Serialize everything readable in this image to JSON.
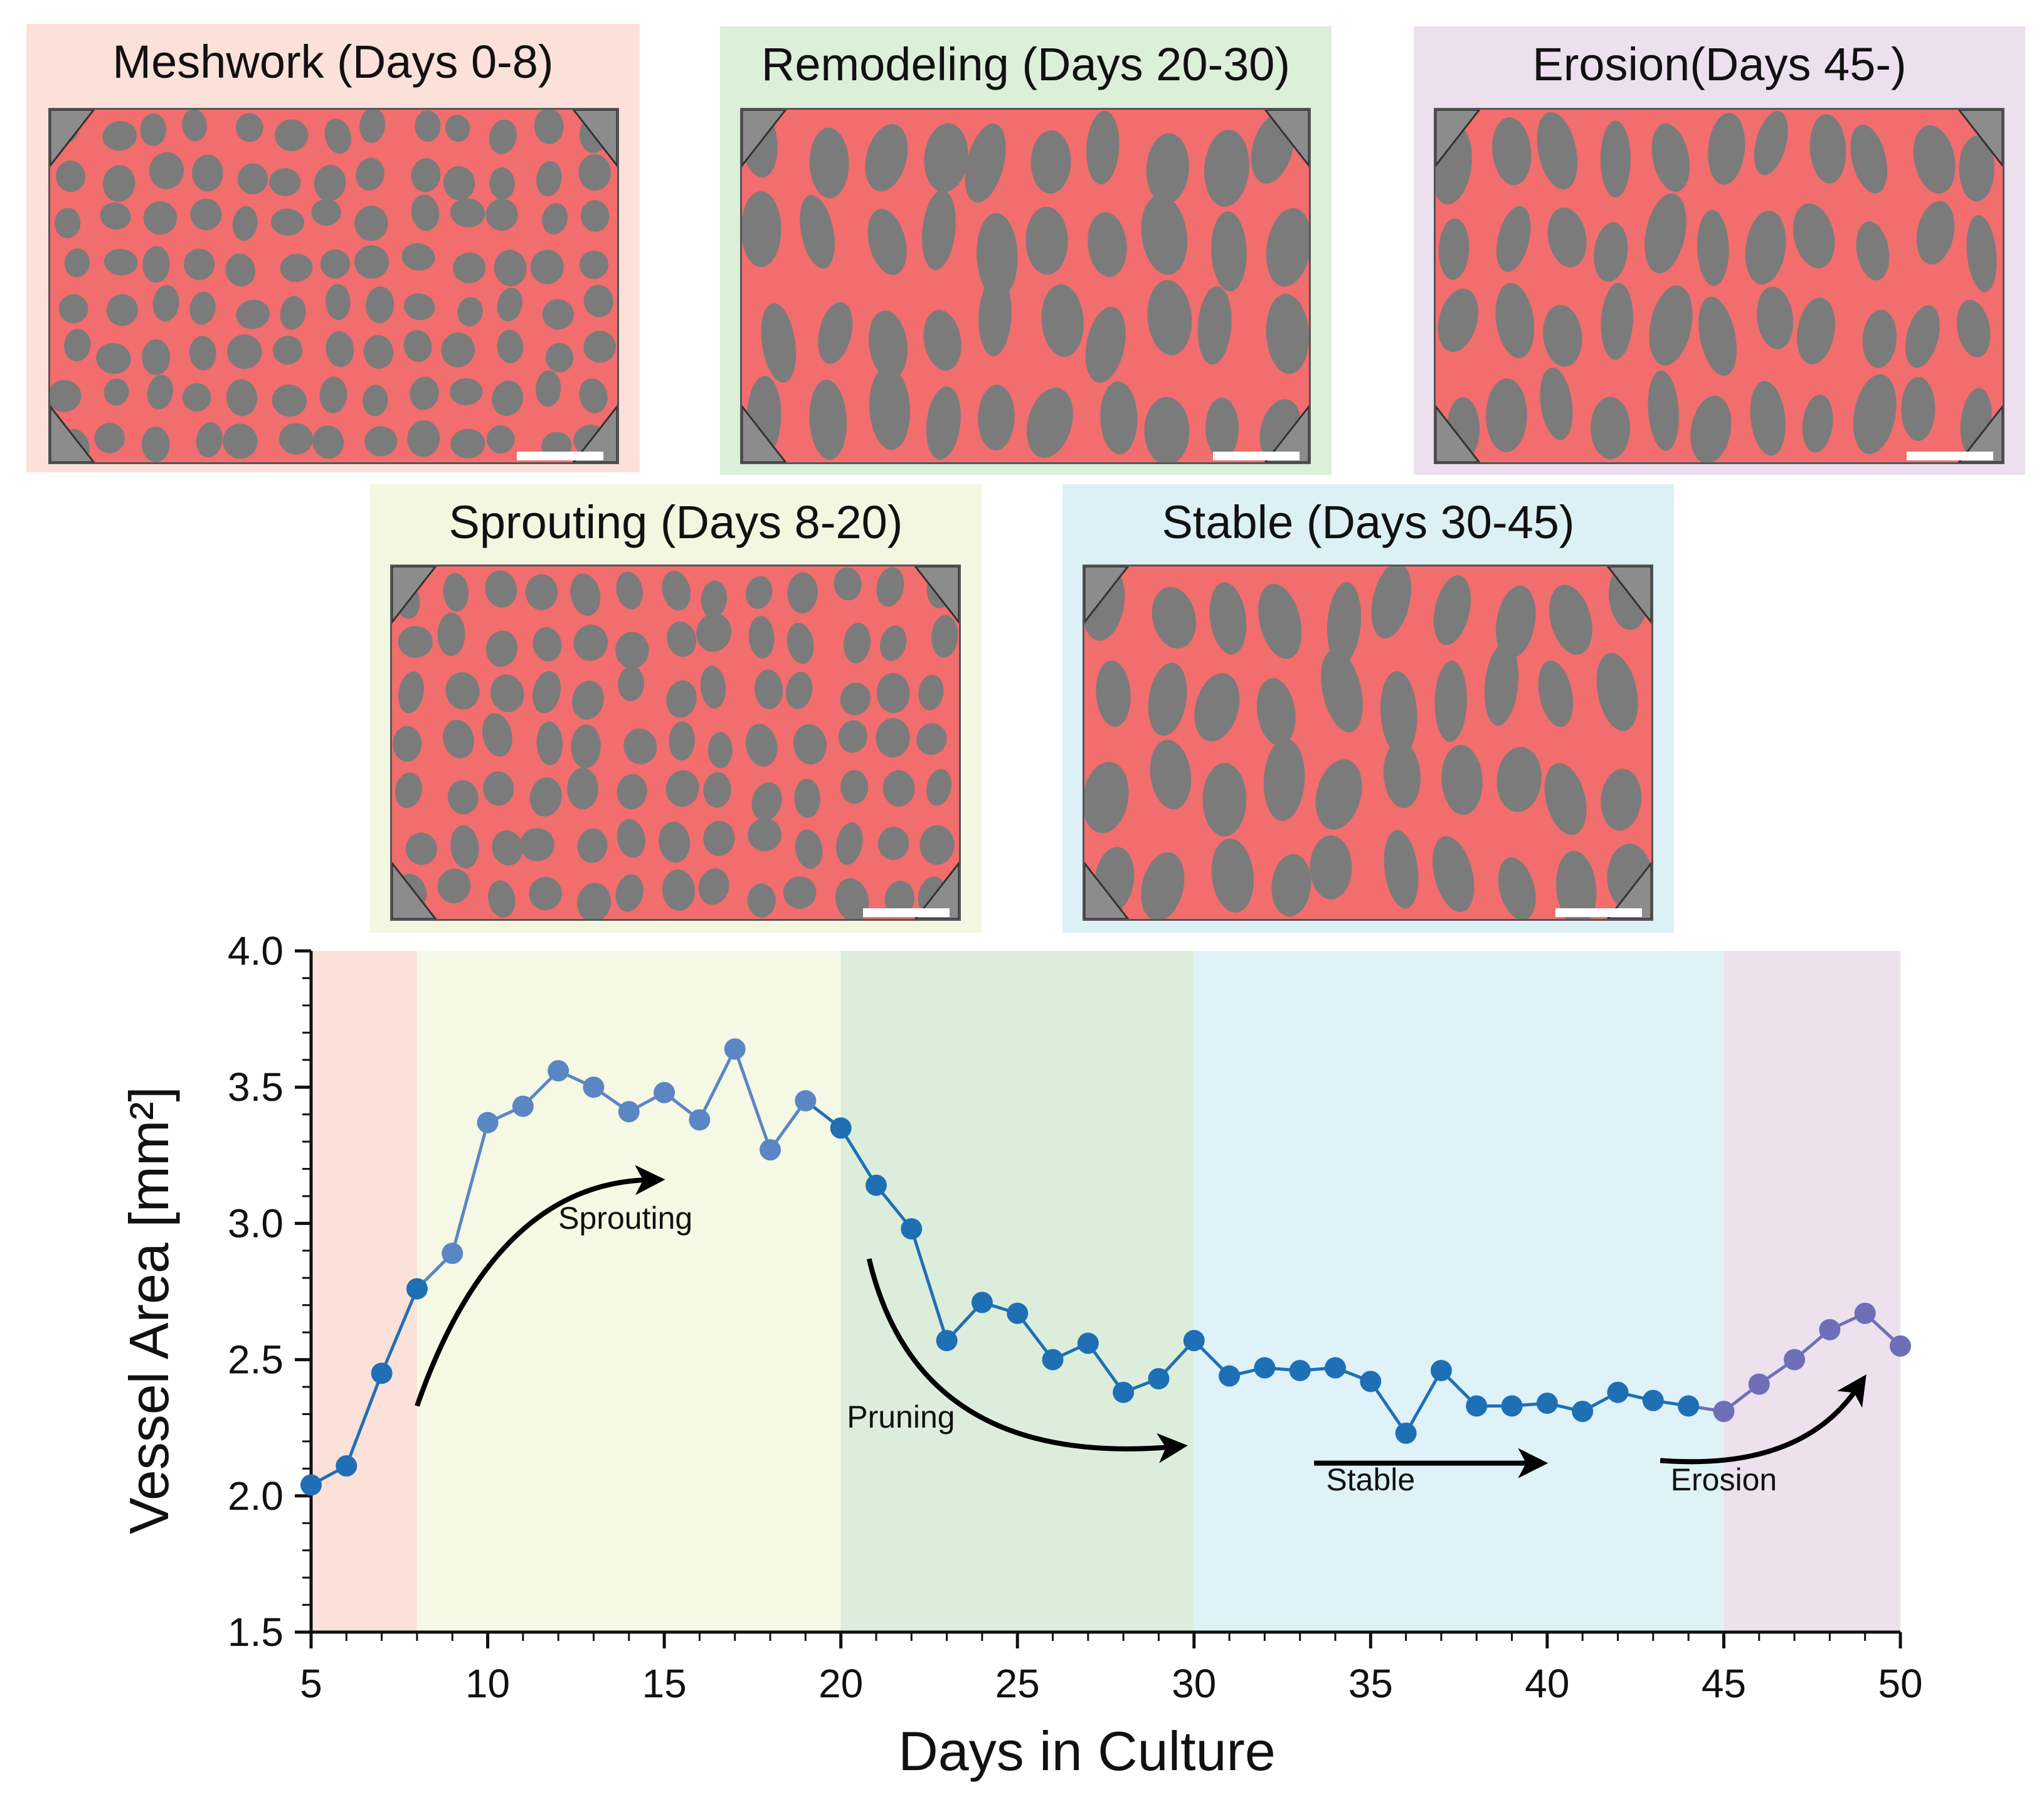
{
  "panels": [
    {
      "key": "meshwork",
      "title": "Meshwork (Days 0-8)",
      "bg": "#fbe1d9"
    },
    {
      "key": "remodeling",
      "title": "Remodeling (Days 20-30)",
      "bg": "#dcefd9"
    },
    {
      "key": "erosion",
      "title": "Erosion(Days 45-)",
      "bg": "#ece0ee"
    },
    {
      "key": "sprouting",
      "title": "Sprouting (Days 8-20)",
      "bg": "#f3f7e2"
    },
    {
      "key": "stable",
      "title": "Stable (Days 30-45)",
      "bg": "#dcf0f6"
    }
  ],
  "colors": {
    "vessel": "#f26d6d",
    "tissue": "#7b7b7b",
    "line_start": "#1f6fb5",
    "line_end": "#7d6fb8",
    "band_meshwork": "#fbe1d9",
    "band_sprouting": "#f4f8e4",
    "band_remodeling": "#dceedb",
    "band_stable": "#def2f8",
    "band_erosion": "#ede1ee"
  },
  "chart_data": {
    "type": "line",
    "xlabel": "Days in Culture",
    "ylabel": "Vessel Area [mm²]",
    "xlim": [
      5,
      50
    ],
    "ylim": [
      1.5,
      4.0
    ],
    "xticks": [
      5,
      10,
      15,
      20,
      25,
      30,
      35,
      40,
      45,
      50
    ],
    "yticks": [
      1.5,
      2.0,
      2.5,
      3.0,
      3.5,
      4.0
    ],
    "bands": [
      {
        "name": "Meshwork",
        "from": 5,
        "to": 8
      },
      {
        "name": "Sprouting",
        "from": 8,
        "to": 20
      },
      {
        "name": "Remodeling",
        "from": 20,
        "to": 30
      },
      {
        "name": "Stable",
        "from": 30,
        "to": 45
      },
      {
        "name": "Erosion",
        "from": 45,
        "to": 50
      }
    ],
    "series": [
      {
        "name": "Vessel Area",
        "x": [
          5,
          6,
          7,
          8,
          9,
          10,
          11,
          12,
          13,
          14,
          15,
          16,
          17,
          18,
          19,
          20,
          21,
          22,
          23,
          24,
          25,
          26,
          27,
          28,
          29,
          30,
          31,
          32,
          33,
          34,
          35,
          36,
          37,
          38,
          39,
          40,
          41,
          42,
          43,
          44,
          45,
          46,
          47,
          48,
          49,
          50
        ],
        "values": [
          2.04,
          2.11,
          2.45,
          2.76,
          2.89,
          3.37,
          3.43,
          3.56,
          3.5,
          3.41,
          3.48,
          3.38,
          3.64,
          3.27,
          3.45,
          3.35,
          3.14,
          2.98,
          2.57,
          2.71,
          2.67,
          2.5,
          2.56,
          2.38,
          2.43,
          2.57,
          2.44,
          2.47,
          2.46,
          2.47,
          2.42,
          2.23,
          2.46,
          2.33,
          2.33,
          2.34,
          2.31,
          2.38,
          2.35,
          2.33,
          2.31,
          2.41,
          2.5,
          2.61,
          2.67,
          2.55
        ]
      }
    ],
    "annotations": [
      {
        "text": "Sprouting",
        "x": 13.9,
        "y": 2.98
      },
      {
        "text": "Pruning",
        "x": 21.7,
        "y": 2.25
      },
      {
        "text": "Stable",
        "x": 35.0,
        "y": 2.02
      },
      {
        "text": "Erosion",
        "x": 45.0,
        "y": 2.02
      }
    ]
  }
}
